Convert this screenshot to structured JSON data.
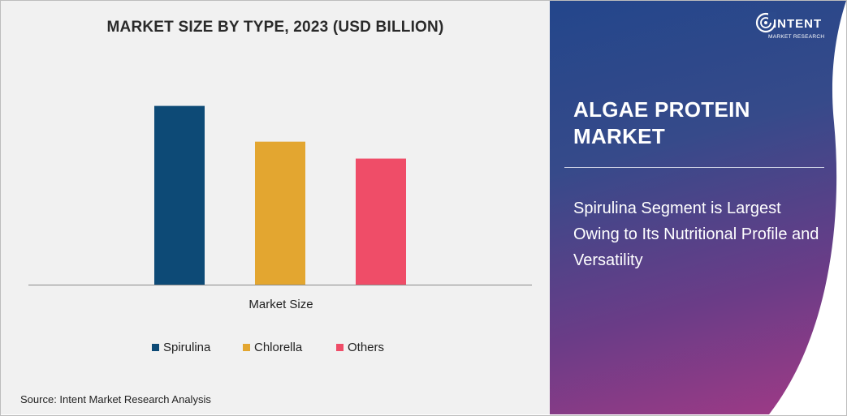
{
  "chart_data": {
    "type": "bar",
    "title": "MARKET SIZE BY TYPE, 2023  (USD BILLION)",
    "categories": [
      "Market Size"
    ],
    "series": [
      {
        "name": "Spirulina",
        "values": [
          0.95
        ],
        "color": "#0d4a76"
      },
      {
        "name": "Chlorella",
        "values": [
          0.76
        ],
        "color": "#e3a630"
      },
      {
        "name": "Others",
        "values": [
          0.67
        ],
        "color": "#ef4d68"
      }
    ],
    "ylim": [
      0,
      1.0
    ],
    "grid": false,
    "legend_position": "bottom"
  },
  "source": "Source: Intent Market Research Analysis",
  "panel": {
    "logo_text": "INTENT",
    "logo_subtext": "MARKET RESEARCH",
    "title": "ALGAE PROTEIN MARKET",
    "text": "Spirulina Segment is Largest Owing to Its Nutritional Profile and Versatility"
  }
}
